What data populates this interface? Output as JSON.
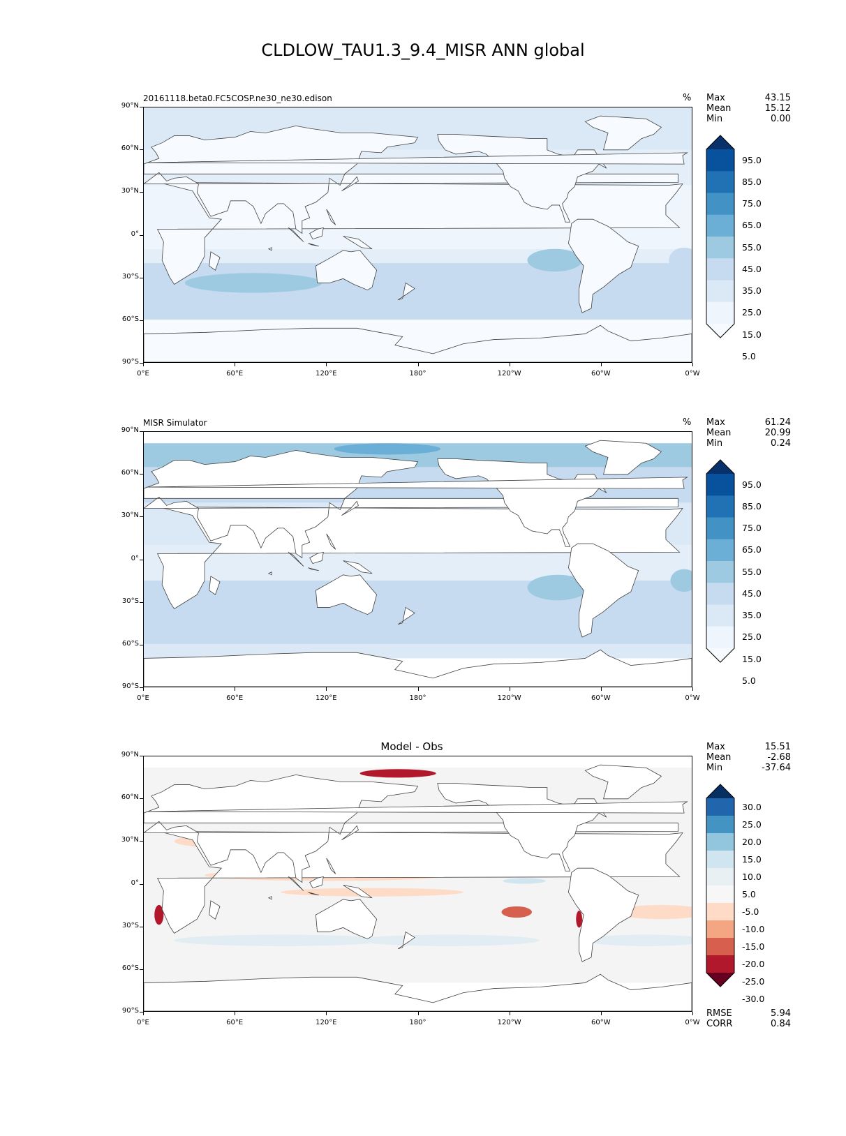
{
  "title": "CLDLOW_TAU1.3_9.4_MISR ANN global",
  "x_ticks": [
    "0°E",
    "60°E",
    "120°E",
    "180°",
    "120°W",
    "60°W",
    "0°W"
  ],
  "y_ticks": [
    "90°N",
    "60°N",
    "30°N",
    "0°",
    "30°S",
    "60°S",
    "90°S"
  ],
  "chart_data": [
    {
      "type": "heatmap",
      "title": "20161118.beta0.FC5COSP.ne30_ne30.edison",
      "units": "%",
      "xlim": [
        0,
        360
      ],
      "ylim": [
        -90,
        90
      ],
      "stats": [
        {
          "key": "Max",
          "value": "43.15"
        },
        {
          "key": "Mean",
          "value": "15.12"
        },
        {
          "key": "Min",
          "value": "0.00"
        }
      ],
      "colorbar": {
        "labels": [
          "95.0",
          "85.0",
          "75.0",
          "65.0",
          "55.0",
          "45.0",
          "35.0",
          "25.0",
          "15.0",
          "5.0"
        ],
        "colors": [
          "#08306b",
          "#08519c",
          "#2171b5",
          "#4292c6",
          "#6baed6",
          "#9ecae1",
          "#c6dbef",
          "#dbe9f6",
          "#eef5fc",
          "#f7fbff"
        ]
      }
    },
    {
      "type": "heatmap",
      "title": "MISR Simulator",
      "units": "%",
      "xlim": [
        0,
        360
      ],
      "ylim": [
        -90,
        90
      ],
      "stats": [
        {
          "key": "Max",
          "value": "61.24"
        },
        {
          "key": "Mean",
          "value": "20.99"
        },
        {
          "key": "Min",
          "value": "0.24"
        }
      ],
      "colorbar": {
        "labels": [
          "95.0",
          "85.0",
          "75.0",
          "65.0",
          "55.0",
          "45.0",
          "35.0",
          "25.0",
          "15.0",
          "5.0"
        ],
        "colors": [
          "#08306b",
          "#08519c",
          "#2171b5",
          "#4292c6",
          "#6baed6",
          "#9ecae1",
          "#c6dbef",
          "#dbe9f6",
          "#eef5fc",
          "#f7fbff"
        ]
      }
    },
    {
      "type": "heatmap",
      "title": "Model - Obs",
      "units": "",
      "xlim": [
        0,
        360
      ],
      "ylim": [
        -90,
        90
      ],
      "stats": [
        {
          "key": "Max",
          "value": "15.51"
        },
        {
          "key": "Mean",
          "value": "-2.68"
        },
        {
          "key": "Min",
          "value": "-37.64"
        }
      ],
      "bottom_stats": [
        {
          "key": "RMSE",
          "value": "5.94"
        },
        {
          "key": "CORR",
          "value": "0.84"
        }
      ],
      "colorbar": {
        "labels": [
          "30.0",
          "25.0",
          "20.0",
          "15.0",
          "10.0",
          "5.0",
          "-5.0",
          "-10.0",
          "-15.0",
          "-20.0",
          "-25.0",
          "-30.0"
        ],
        "colors": [
          "#053061",
          "#2166ac",
          "#4393c3",
          "#92c5de",
          "#d1e5f0",
          "#e8f0f4",
          "#f7f7f7",
          "#fddbc7",
          "#f4a582",
          "#d6604d",
          "#b2182b",
          "#67001f"
        ]
      }
    }
  ]
}
